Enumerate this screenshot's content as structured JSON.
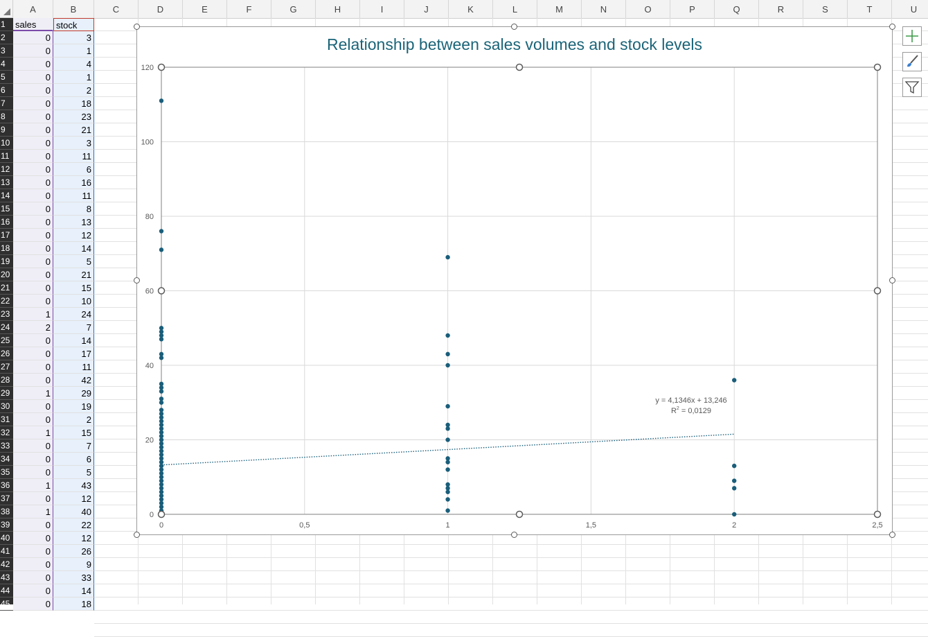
{
  "columns": [
    "A",
    "B",
    "C",
    "D",
    "E",
    "F",
    "G",
    "H",
    "I",
    "J",
    "K",
    "L",
    "M",
    "N",
    "O",
    "P",
    "Q",
    "R",
    "S",
    "T",
    "U"
  ],
  "header_row": {
    "a": "sales",
    "b": "stock"
  },
  "rows": [
    {
      "n": "2",
      "a": "0",
      "b": "3"
    },
    {
      "n": "3",
      "a": "0",
      "b": "1"
    },
    {
      "n": "4",
      "a": "0",
      "b": "4"
    },
    {
      "n": "5",
      "a": "0",
      "b": "1"
    },
    {
      "n": "6",
      "a": "0",
      "b": "2"
    },
    {
      "n": "7",
      "a": "0",
      "b": "18"
    },
    {
      "n": "8",
      "a": "0",
      "b": "23"
    },
    {
      "n": "9",
      "a": "0",
      "b": "21"
    },
    {
      "n": "10",
      "a": "0",
      "b": "3"
    },
    {
      "n": "11",
      "a": "0",
      "b": "11"
    },
    {
      "n": "12",
      "a": "0",
      "b": "6"
    },
    {
      "n": "13",
      "a": "0",
      "b": "16"
    },
    {
      "n": "14",
      "a": "0",
      "b": "11"
    },
    {
      "n": "15",
      "a": "0",
      "b": "8"
    },
    {
      "n": "16",
      "a": "0",
      "b": "13"
    },
    {
      "n": "17",
      "a": "0",
      "b": "12"
    },
    {
      "n": "18",
      "a": "0",
      "b": "14"
    },
    {
      "n": "19",
      "a": "0",
      "b": "5"
    },
    {
      "n": "20",
      "a": "0",
      "b": "21"
    },
    {
      "n": "21",
      "a": "0",
      "b": "15"
    },
    {
      "n": "22",
      "a": "0",
      "b": "10"
    },
    {
      "n": "23",
      "a": "1",
      "b": "24"
    },
    {
      "n": "24",
      "a": "2",
      "b": "7"
    },
    {
      "n": "25",
      "a": "0",
      "b": "14"
    },
    {
      "n": "26",
      "a": "0",
      "b": "17"
    },
    {
      "n": "27",
      "a": "0",
      "b": "11"
    },
    {
      "n": "28",
      "a": "0",
      "b": "42"
    },
    {
      "n": "29",
      "a": "1",
      "b": "29"
    },
    {
      "n": "30",
      "a": "0",
      "b": "19"
    },
    {
      "n": "31",
      "a": "0",
      "b": "2"
    },
    {
      "n": "32",
      "a": "1",
      "b": "15"
    },
    {
      "n": "33",
      "a": "0",
      "b": "7"
    },
    {
      "n": "34",
      "a": "0",
      "b": "6"
    },
    {
      "n": "35",
      "a": "0",
      "b": "5"
    },
    {
      "n": "36",
      "a": "1",
      "b": "43"
    },
    {
      "n": "37",
      "a": "0",
      "b": "12"
    },
    {
      "n": "38",
      "a": "1",
      "b": "40"
    },
    {
      "n": "39",
      "a": "0",
      "b": "22"
    },
    {
      "n": "40",
      "a": "0",
      "b": "12"
    },
    {
      "n": "41",
      "a": "0",
      "b": "26"
    },
    {
      "n": "42",
      "a": "0",
      "b": "9"
    },
    {
      "n": "43",
      "a": "0",
      "b": "33"
    },
    {
      "n": "44",
      "a": "0",
      "b": "14"
    },
    {
      "n": "45",
      "a": "0",
      "b": "18"
    }
  ],
  "side_buttons": [
    {
      "icon": "plus-icon",
      "label": "Chart Elements"
    },
    {
      "icon": "brush-icon",
      "label": "Chart Styles"
    },
    {
      "icon": "filter-icon",
      "label": "Chart Filters"
    }
  ],
  "colors": {
    "series": "#1a5e7a",
    "title": "#1a6478",
    "row_header": "#2f2f2f"
  },
  "chart_data": {
    "type": "scatter",
    "title": "Relationship between sales volumes and stock levels",
    "xlabel": "",
    "ylabel": "",
    "xlim": [
      0,
      2.5
    ],
    "ylim": [
      0,
      120
    ],
    "x_ticks": [
      "0",
      "0,5",
      "1",
      "1,5",
      "2",
      "2,5"
    ],
    "y_ticks": [
      "0",
      "20",
      "40",
      "60",
      "80",
      "100",
      "120"
    ],
    "grid": true,
    "points": [
      {
        "x": 0,
        "y": 111
      },
      {
        "x": 0,
        "y": 76
      },
      {
        "x": 0,
        "y": 71
      },
      {
        "x": 0,
        "y": 50
      },
      {
        "x": 0,
        "y": 49
      },
      {
        "x": 0,
        "y": 48
      },
      {
        "x": 0,
        "y": 47
      },
      {
        "x": 0,
        "y": 43
      },
      {
        "x": 0,
        "y": 42
      },
      {
        "x": 0,
        "y": 35
      },
      {
        "x": 0,
        "y": 34
      },
      {
        "x": 0,
        "y": 33
      },
      {
        "x": 0,
        "y": 31
      },
      {
        "x": 0,
        "y": 30
      },
      {
        "x": 0,
        "y": 28
      },
      {
        "x": 0,
        "y": 27
      },
      {
        "x": 0,
        "y": 26
      },
      {
        "x": 0,
        "y": 25
      },
      {
        "x": 0,
        "y": 24
      },
      {
        "x": 0,
        "y": 23
      },
      {
        "x": 0,
        "y": 22
      },
      {
        "x": 0,
        "y": 21
      },
      {
        "x": 0,
        "y": 20
      },
      {
        "x": 0,
        "y": 19
      },
      {
        "x": 0,
        "y": 18
      },
      {
        "x": 0,
        "y": 17
      },
      {
        "x": 0,
        "y": 16
      },
      {
        "x": 0,
        "y": 15
      },
      {
        "x": 0,
        "y": 14
      },
      {
        "x": 0,
        "y": 13
      },
      {
        "x": 0,
        "y": 12
      },
      {
        "x": 0,
        "y": 11
      },
      {
        "x": 0,
        "y": 10
      },
      {
        "x": 0,
        "y": 9
      },
      {
        "x": 0,
        "y": 8
      },
      {
        "x": 0,
        "y": 7
      },
      {
        "x": 0,
        "y": 6
      },
      {
        "x": 0,
        "y": 5
      },
      {
        "x": 0,
        "y": 4
      },
      {
        "x": 0,
        "y": 3
      },
      {
        "x": 0,
        "y": 2
      },
      {
        "x": 0,
        "y": 1
      },
      {
        "x": 0,
        "y": 0
      },
      {
        "x": 1,
        "y": 69
      },
      {
        "x": 1,
        "y": 48
      },
      {
        "x": 1,
        "y": 43
      },
      {
        "x": 1,
        "y": 40
      },
      {
        "x": 1,
        "y": 29
      },
      {
        "x": 1,
        "y": 24
      },
      {
        "x": 1,
        "y": 23
      },
      {
        "x": 1,
        "y": 20
      },
      {
        "x": 1,
        "y": 15
      },
      {
        "x": 1,
        "y": 14
      },
      {
        "x": 1,
        "y": 12
      },
      {
        "x": 1,
        "y": 8
      },
      {
        "x": 1,
        "y": 7
      },
      {
        "x": 1,
        "y": 6
      },
      {
        "x": 1,
        "y": 4
      },
      {
        "x": 1,
        "y": 1
      },
      {
        "x": 2,
        "y": 36
      },
      {
        "x": 2,
        "y": 13
      },
      {
        "x": 2,
        "y": 9
      },
      {
        "x": 2,
        "y": 7
      },
      {
        "x": 2,
        "y": 0
      }
    ],
    "trendline": {
      "type": "linear",
      "slope": 4.1346,
      "intercept": 13.246,
      "x_range": [
        0,
        2
      ]
    },
    "trendline_label": {
      "equation": "y = 4,1346x + 13,246",
      "r2_prefix": "R",
      "r2_value": " = 0,0129"
    }
  }
}
